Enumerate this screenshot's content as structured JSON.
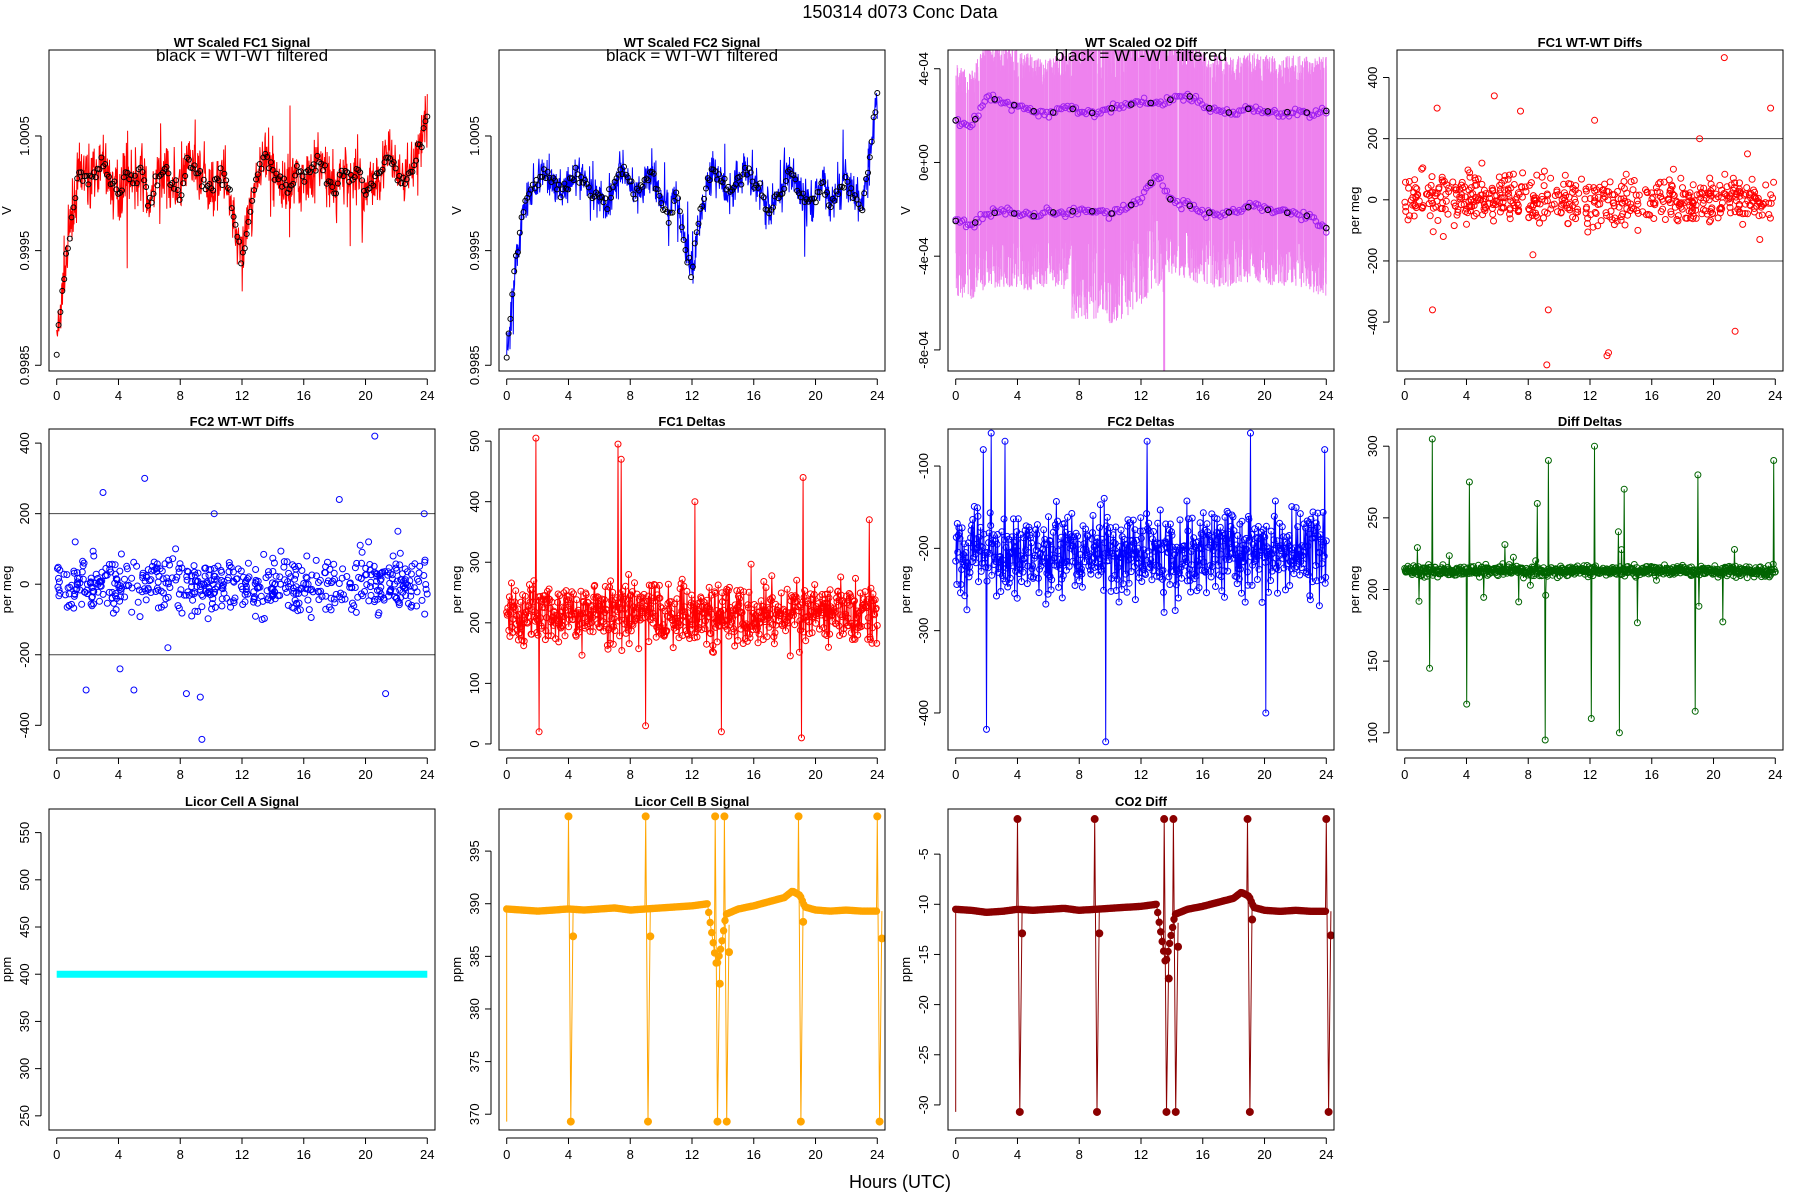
{
  "figure": {
    "title": "150314   d073   Conc Data",
    "xlabel": "Hours (UTC)"
  },
  "chart_data": [
    {
      "id": "fc1_signal",
      "type": "line",
      "title": "WT Scaled FC1 Signal",
      "annotation": "black = WT-WT filtered",
      "ylabel": "V",
      "xlim": [
        -0.5,
        24.5
      ],
      "ylim": [
        0.99845,
        1.00125
      ],
      "xticks": [
        0,
        4,
        8,
        12,
        16,
        20,
        24
      ],
      "yticks": [
        0.9985,
        0.9995,
        1.0005
      ],
      "ytick_labels": [
        "0.9985",
        "0.9995",
        "1.0005"
      ],
      "color": "#ff0000",
      "overlay_color": "#000000",
      "series_x": [
        0,
        0.5,
        1,
        1.5,
        2,
        2.5,
        3,
        3.5,
        4,
        4.5,
        5,
        5.5,
        6,
        6.5,
        7,
        7.5,
        8,
        8.5,
        9,
        9.5,
        10,
        10.5,
        11,
        11.5,
        12,
        12.5,
        13,
        13.5,
        14,
        14.5,
        15,
        15.5,
        16,
        16.5,
        17,
        17.5,
        18,
        18.5,
        19,
        19.5,
        20,
        20.5,
        21,
        21.5,
        22,
        22.5,
        23,
        23.5,
        24
      ],
      "series_y": [
        0.99865,
        0.9993,
        0.9998,
        1.0002,
        1.0001,
        1.0002,
        1.0003,
        1.0001,
        1.0,
        1.0002,
        1.0001,
        1.0002,
        0.9999,
        1.0001,
        1.0002,
        1.0001,
        1.0,
        1.0003,
        1.0002,
        1.0001,
        1.0,
        1.0002,
        1.0001,
        0.9998,
        0.9994,
        0.9998,
        1.0002,
        1.0003,
        1.0002,
        1.0001,
        1.0,
        1.0002,
        1.0001,
        1.0002,
        1.0003,
        1.0001,
        1.0,
        1.0002,
        1.0001,
        1.0002,
        1.0,
        1.0001,
        1.0002,
        1.0003,
        1.0002,
        1.0001,
        1.0002,
        1.0004,
        1.0007
      ]
    },
    {
      "id": "fc2_signal",
      "type": "line",
      "title": "WT Scaled FC2 Signal",
      "annotation": "black = WT-WT filtered",
      "ylabel": "V",
      "xlim": [
        -0.5,
        24.5
      ],
      "ylim": [
        0.99845,
        1.00125
      ],
      "xticks": [
        0,
        4,
        8,
        12,
        16,
        20,
        24
      ],
      "yticks": [
        0.9985,
        0.9995,
        1.0005
      ],
      "ytick_labels": [
        "0.9985",
        "0.9995",
        "1.0005"
      ],
      "color": "#0000ff",
      "overlay_color": "#000000",
      "series_x": [
        0,
        0.5,
        1,
        1.5,
        2,
        2.5,
        3,
        3.5,
        4,
        4.5,
        5,
        5.5,
        6,
        6.5,
        7,
        7.5,
        8,
        8.5,
        9,
        9.5,
        10,
        10.5,
        11,
        11.5,
        12,
        12.5,
        13,
        13.5,
        14,
        14.5,
        15,
        15.5,
        16,
        16.5,
        17,
        17.5,
        18,
        18.5,
        19,
        19.5,
        20,
        20.5,
        21,
        21.5,
        22,
        22.5,
        23,
        23.5,
        24
      ],
      "series_y": [
        0.99855,
        0.9993,
        0.9998,
        1.0,
        1.0001,
        1.0002,
        1.0001,
        1.0,
        1.0001,
        1.0002,
        1.0001,
        1.0,
        1.0,
        0.9999,
        1.0001,
        1.0002,
        1.0001,
        1.0,
        1.0001,
        1.0002,
        0.9999,
        0.9998,
        1.0,
        0.9996,
        0.9993,
        0.9998,
        1.0001,
        1.0002,
        1.0001,
        1.0,
        1.0001,
        1.0002,
        1.0001,
        1.0,
        0.9998,
        1.0,
        1.0001,
        1.0002,
        1.0,
        0.9999,
        1.0,
        1.0001,
        0.9999,
        1.0,
        1.0001,
        1.0,
        0.9999,
        1.0003,
        1.0009
      ]
    },
    {
      "id": "o2_diff",
      "type": "line",
      "title": "WT Scaled O2 Diff",
      "annotation": "black = WT-WT filtered",
      "ylabel": "V",
      "xlim": [
        -0.5,
        24.5
      ],
      "ylim": [
        -0.00089,
        0.00048
      ],
      "xticks": [
        0,
        4,
        8,
        12,
        16,
        20,
        24
      ],
      "yticks": [
        -0.0008,
        -0.0004,
        0,
        0.0004
      ],
      "ytick_labels": [
        "-8e-04",
        "-4e-04",
        "0e+00",
        "4e-04"
      ],
      "color": "#ee82ee",
      "point_color": "#a020f0",
      "overlay_color": "#000000",
      "upper_x": [
        0,
        1,
        2,
        3,
        4,
        5,
        6,
        7,
        8,
        9,
        10,
        11,
        12,
        13,
        14,
        15,
        16,
        17,
        18,
        19,
        20,
        21,
        22,
        23,
        24
      ],
      "upper_y": [
        0.00018,
        0.00015,
        0.00028,
        0.00026,
        0.00024,
        0.00022,
        0.0002,
        0.00024,
        0.00022,
        0.00021,
        0.00023,
        0.00024,
        0.00026,
        0.00025,
        0.00027,
        0.00029,
        0.00024,
        0.00022,
        0.00021,
        0.00023,
        0.00022,
        0.00021,
        0.00022,
        0.00021,
        0.00022
      ],
      "lower_x": [
        0,
        1,
        2,
        3,
        4,
        5,
        6,
        7,
        8,
        9,
        10,
        11,
        12,
        13,
        14,
        15,
        16,
        17,
        18,
        19,
        20,
        21,
        22,
        23,
        24
      ],
      "lower_y": [
        -0.00025,
        -0.00027,
        -0.00022,
        -0.00021,
        -0.00022,
        -0.00023,
        -0.00021,
        -0.00022,
        -0.0002,
        -0.00021,
        -0.00022,
        -0.0002,
        -0.00015,
        -5e-05,
        -0.00017,
        -0.00018,
        -0.00021,
        -0.00022,
        -0.00021,
        -0.00019,
        -0.0002,
        -0.00021,
        -0.00022,
        -0.00023,
        -0.00028
      ]
    },
    {
      "id": "fc1_wtwt",
      "type": "scatter",
      "title": "FC1 WT-WT Diffs",
      "ylabel": "per meg",
      "xlim": [
        -0.5,
        24.5
      ],
      "ylim": [
        -560,
        490
      ],
      "xticks": [
        0,
        4,
        8,
        12,
        16,
        20,
        24
      ],
      "yticks": [
        -400,
        -200,
        0,
        200,
        400
      ],
      "ytick_labels": [
        "-400",
        "-200",
        "0",
        "200",
        "400"
      ],
      "hlines": [
        200,
        -200
      ],
      "color": "#ff0000",
      "x": [
        0.3,
        0.7,
        1.1,
        1.8,
        2.1,
        2.5,
        3.3,
        4.0,
        4.4,
        5.0,
        5.8,
        6.2,
        7.1,
        7.5,
        8.3,
        9.2,
        9.3,
        10.4,
        11.2,
        12.3,
        13.1,
        13.2,
        14.2,
        15.1,
        16.3,
        17.4,
        18.2,
        19.1,
        20.4,
        20.7,
        21.4,
        22.2,
        23.0,
        23.7
      ],
      "y": [
        60,
        -20,
        100,
        -360,
        300,
        -120,
        40,
        -80,
        20,
        120,
        340,
        -40,
        50,
        290,
        -180,
        -540,
        -360,
        80,
        -40,
        260,
        -510,
        -500,
        60,
        -100,
        40,
        100,
        -60,
        200,
        -30,
        465,
        -430,
        150,
        -130,
        300
      ]
    },
    {
      "id": "fc2_wtwt",
      "type": "scatter",
      "title": "FC2 WT-WT Diffs",
      "ylabel": "per meg",
      "xlim": [
        -0.5,
        24.5
      ],
      "ylim": [
        -470,
        440
      ],
      "xticks": [
        0,
        4,
        8,
        12,
        16,
        20,
        24
      ],
      "yticks": [
        -400,
        -200,
        0,
        200,
        400
      ],
      "ytick_labels": [
        "-400",
        "-200",
        "0",
        "200",
        "400"
      ],
      "hlines": [
        200,
        -200
      ],
      "color": "#0000ff",
      "x": [
        0.2,
        0.8,
        1.2,
        1.9,
        2.4,
        3.0,
        3.6,
        4.1,
        5.0,
        5.7,
        6.3,
        7.2,
        7.7,
        8.4,
        9.3,
        9.4,
        10.2,
        11.0,
        12.1,
        13.3,
        14.1,
        15.0,
        16.2,
        17.1,
        18.3,
        19.4,
        20.2,
        20.6,
        21.3,
        22.1,
        23.0,
        23.8
      ],
      "y": [
        40,
        -60,
        120,
        -300,
        80,
        260,
        -40,
        -240,
        -300,
        300,
        40,
        -180,
        100,
        -310,
        -320,
        -440,
        200,
        -40,
        20,
        -100,
        60,
        -60,
        80,
        -20,
        240,
        -80,
        120,
        420,
        -310,
        150,
        -60,
        200
      ]
    },
    {
      "id": "fc1_deltas",
      "type": "line",
      "title": "FC1 Deltas",
      "ylabel": "per meg",
      "xlim": [
        -0.5,
        24.5
      ],
      "ylim": [
        -10,
        520
      ],
      "xticks": [
        0,
        4,
        8,
        12,
        16,
        20,
        24
      ],
      "yticks": [
        0,
        100,
        200,
        300,
        400,
        500
      ],
      "ytick_labels": [
        "0",
        "100",
        "200",
        "300",
        "400",
        "500"
      ],
      "color": "#ff0000",
      "spikes_x": [
        1.9,
        2.1,
        7.2,
        7.4,
        9.0,
        12.2,
        13.9,
        19.1,
        19.2,
        23.5
      ],
      "spikes_y": [
        505,
        20,
        495,
        470,
        30,
        400,
        20,
        10,
        440,
        370
      ]
    },
    {
      "id": "fc2_deltas",
      "type": "line",
      "title": "FC2 Deltas",
      "ylabel": "per meg",
      "xlim": [
        -0.5,
        24.5
      ],
      "ylim": [
        -445,
        -55
      ],
      "xticks": [
        0,
        4,
        8,
        12,
        16,
        20,
        24
      ],
      "yticks": [
        -400,
        -300,
        -200,
        -100
      ],
      "ytick_labels": [
        "-400",
        "-300",
        "-200",
        "-100"
      ],
      "color": "#0000ff",
      "spikes_x": [
        1.8,
        2.0,
        2.3,
        3.2,
        9.7,
        12.4,
        19.1,
        20.1,
        23.9
      ],
      "spikes_y": [
        -80,
        -420,
        -60,
        -70,
        -435,
        -70,
        -60,
        -400,
        -80
      ]
    },
    {
      "id": "diff_deltas",
      "type": "line",
      "title": "Diff Deltas",
      "ylabel": "per meg",
      "xlim": [
        -0.5,
        24.5
      ],
      "ylim": [
        88,
        312
      ],
      "xticks": [
        0,
        4,
        8,
        12,
        16,
        20,
        24
      ],
      "yticks": [
        100,
        150,
        200,
        250,
        300
      ],
      "ytick_labels": [
        "100",
        "150",
        "200",
        "250",
        "300"
      ],
      "color": "#006400",
      "spikes_x": [
        1.6,
        1.8,
        4.0,
        4.2,
        8.6,
        9.1,
        9.3,
        12.1,
        12.3,
        13.9,
        14.2,
        18.8,
        19.0,
        23.9
      ],
      "spikes_y": [
        145,
        305,
        120,
        275,
        260,
        95,
        290,
        110,
        300,
        100,
        270,
        115,
        280,
        290
      ]
    },
    {
      "id": "licor_a",
      "type": "line",
      "title": "Licor Cell A Signal",
      "ylabel": "ppm",
      "xlim": [
        -0.5,
        24.5
      ],
      "ylim": [
        235,
        575
      ],
      "xticks": [
        0,
        4,
        8,
        12,
        16,
        20,
        24
      ],
      "yticks": [
        250,
        300,
        350,
        400,
        450,
        500,
        550
      ],
      "ytick_labels": [
        "250",
        "300",
        "350",
        "400",
        "450",
        "500",
        "550"
      ],
      "color": "#00ffff",
      "x": [
        0,
        24
      ],
      "y": [
        400,
        400
      ]
    },
    {
      "id": "licor_b",
      "type": "line",
      "title": "Licor Cell B Signal",
      "ylabel": "ppm",
      "xlim": [
        -0.5,
        24.5
      ],
      "ylim": [
        368.5,
        399.0
      ],
      "xticks": [
        0,
        4,
        8,
        12,
        16,
        20,
        24
      ],
      "yticks": [
        370,
        375,
        380,
        385,
        390,
        395
      ],
      "ytick_labels": [
        "370",
        "375",
        "380",
        "385",
        "390",
        "395"
      ],
      "color": "#ffa500",
      "baseline_x": [
        0,
        1,
        2,
        3,
        4,
        5,
        6,
        7,
        8,
        9,
        10,
        11,
        12,
        13,
        13.6,
        13.9,
        14.2,
        15,
        16,
        17,
        18,
        18.5,
        19,
        19.3,
        20,
        21,
        22,
        23,
        24
      ],
      "baseline_y": [
        389.5,
        389.4,
        389.3,
        389.4,
        389.5,
        389.4,
        389.5,
        389.6,
        389.4,
        389.5,
        389.6,
        389.7,
        389.8,
        390.0,
        384.0,
        386.0,
        389.0,
        389.5,
        389.8,
        390.2,
        390.6,
        391.2,
        390.8,
        389.7,
        389.4,
        389.3,
        389.4,
        389.3,
        389.3
      ],
      "spikes_x": [
        4.0,
        9.0,
        13.5,
        14.1,
        18.9,
        24.0
      ],
      "spikes_high": [
        398.3,
        398.3,
        398.3,
        398.3,
        398.3,
        398.3
      ],
      "spikes_low": [
        369.3,
        369.3,
        369.3,
        369.3,
        369.3,
        369.3
      ]
    },
    {
      "id": "co2_diff",
      "type": "line",
      "title": "CO2 Diff",
      "ylabel": "ppm",
      "xlim": [
        -0.5,
        24.5
      ],
      "ylim": [
        -32.5,
        -0.5
      ],
      "xticks": [
        0,
        4,
        8,
        12,
        16,
        20,
        24
      ],
      "yticks": [
        -30,
        -25,
        -20,
        -15,
        -10,
        -5
      ],
      "ytick_labels": [
        "-30",
        "-25",
        "-20",
        "-15",
        "-10",
        "-5"
      ],
      "color": "#8b0000",
      "baseline_x": [
        0,
        1,
        2,
        3,
        4,
        5,
        6,
        7,
        8,
        9,
        10,
        11,
        12,
        13,
        13.6,
        13.9,
        14.2,
        15,
        16,
        17,
        18,
        18.5,
        19,
        19.3,
        20,
        21,
        22,
        23,
        24
      ],
      "baseline_y": [
        -10.5,
        -10.6,
        -10.8,
        -10.7,
        -10.5,
        -10.6,
        -10.5,
        -10.4,
        -10.6,
        -10.5,
        -10.4,
        -10.3,
        -10.2,
        -10.0,
        -16.0,
        -13.5,
        -11.0,
        -10.5,
        -10.2,
        -9.8,
        -9.4,
        -8.8,
        -9.2,
        -10.3,
        -10.6,
        -10.7,
        -10.6,
        -10.7,
        -10.7
      ],
      "spikes_x": [
        4.0,
        9.0,
        13.5,
        14.1,
        18.9,
        24.0
      ],
      "spikes_high": [
        -1.5,
        -1.5,
        -1.5,
        -1.5,
        -1.5,
        -1.5
      ],
      "spikes_low": [
        -30.7,
        -30.7,
        -30.7,
        -30.7,
        -30.7,
        -30.7
      ]
    }
  ]
}
